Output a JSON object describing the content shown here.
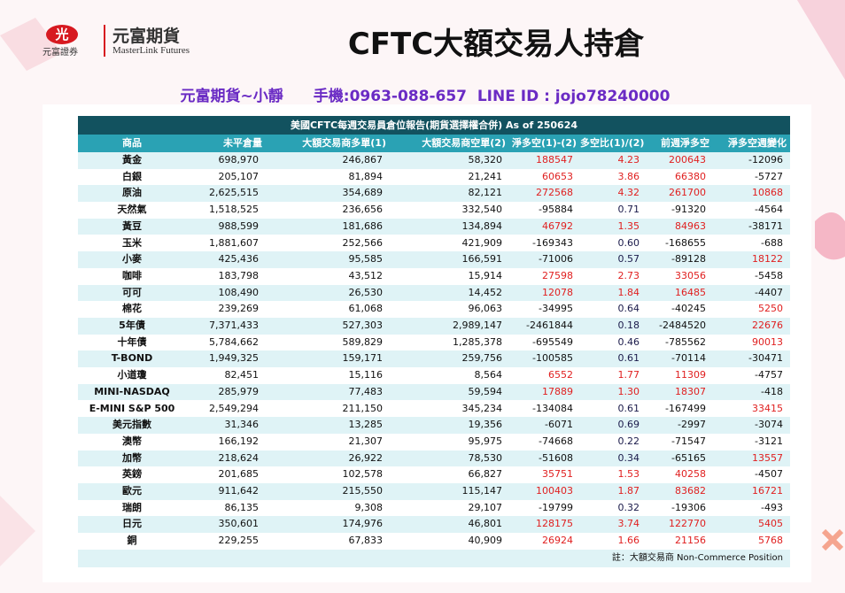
{
  "header": {
    "logo_mark": "光",
    "logo_caption": "元富證券",
    "brand_cn": "元富期貨",
    "brand_en": "MasterLink Futures",
    "title": "CFTC大額交易人持倉",
    "contact": "元富期貨~小靜　　手機:0963-088-657  LINE ID : jojo78240000"
  },
  "table": {
    "caption": "美國CFTC每週交易員倉位報告(期貨選擇權合併) As of  250624",
    "columns": [
      "商品",
      "未平倉量",
      "大額交易商多單(1)",
      "大額交易商空單(2)",
      "淨多空(1)-(2)",
      "多空比(1)/(2)",
      "前週淨多空",
      "淨多空週變化"
    ],
    "rows": [
      [
        "黃金",
        "698,970",
        "246,867",
        "58,320",
        "188547",
        "4.23",
        "200643",
        "-12096"
      ],
      [
        "白銀",
        "205,107",
        "81,894",
        "21,241",
        "60653",
        "3.86",
        "66380",
        "-5727"
      ],
      [
        "原油",
        "2,625,515",
        "354,689",
        "82,121",
        "272568",
        "4.32",
        "261700",
        "10868"
      ],
      [
        "天然氣",
        "1,518,525",
        "236,656",
        "332,540",
        "-95884",
        "0.71",
        "-91320",
        "-4564"
      ],
      [
        "黃豆",
        "988,599",
        "181,686",
        "134,894",
        "46792",
        "1.35",
        "84963",
        "-38171"
      ],
      [
        "玉米",
        "1,881,607",
        "252,566",
        "421,909",
        "-169343",
        "0.60",
        "-168655",
        "-688"
      ],
      [
        "小麥",
        "425,436",
        "95,585",
        "166,591",
        "-71006",
        "0.57",
        "-89128",
        "18122"
      ],
      [
        "咖啡",
        "183,798",
        "43,512",
        "15,914",
        "27598",
        "2.73",
        "33056",
        "-5458"
      ],
      [
        "可可",
        "108,490",
        "26,530",
        "14,452",
        "12078",
        "1.84",
        "16485",
        "-4407"
      ],
      [
        "棉花",
        "239,269",
        "61,068",
        "96,063",
        "-34995",
        "0.64",
        "-40245",
        "5250"
      ],
      [
        "5年債",
        "7,371,433",
        "527,303",
        "2,989,147",
        "-2461844",
        "0.18",
        "-2484520",
        "22676"
      ],
      [
        "十年債",
        "5,784,662",
        "589,829",
        "1,285,378",
        "-695549",
        "0.46",
        "-785562",
        "90013"
      ],
      [
        "T-BOND",
        "1,949,325",
        "159,171",
        "259,756",
        "-100585",
        "0.61",
        "-70114",
        "-30471"
      ],
      [
        "小道瓊",
        "82,451",
        "15,116",
        "8,564",
        "6552",
        "1.77",
        "11309",
        "-4757"
      ],
      [
        "MINI-NASDAQ",
        "285,979",
        "77,483",
        "59,594",
        "17889",
        "1.30",
        "18307",
        "-418"
      ],
      [
        "E-MINI S&P 500",
        "2,549,294",
        "211,150",
        "345,234",
        "-134084",
        "0.61",
        "-167499",
        "33415"
      ],
      [
        "美元指數",
        "31,346",
        "13,285",
        "19,356",
        "-6071",
        "0.69",
        "-2997",
        "-3074"
      ],
      [
        "澳幣",
        "166,192",
        "21,307",
        "95,975",
        "-74668",
        "0.22",
        "-71547",
        "-3121"
      ],
      [
        "加幣",
        "218,624",
        "26,922",
        "78,530",
        "-51608",
        "0.34",
        "-65165",
        "13557"
      ],
      [
        "英鎊",
        "201,685",
        "102,578",
        "66,827",
        "35751",
        "1.53",
        "40258",
        "-4507"
      ],
      [
        "歐元",
        "911,642",
        "215,550",
        "115,147",
        "100403",
        "1.87",
        "83682",
        "16721"
      ],
      [
        "瑞朗",
        "86,135",
        "9,308",
        "29,107",
        "-19799",
        "0.32",
        "-19306",
        "-493"
      ],
      [
        "日元",
        "350,601",
        "174,976",
        "46,801",
        "128175",
        "3.74",
        "122770",
        "5405"
      ],
      [
        "銅",
        "229,255",
        "67,833",
        "40,909",
        "26924",
        "1.66",
        "21156",
        "5768"
      ]
    ],
    "footnote": "註：大額交易商 Non-Commerce Position"
  }
}
